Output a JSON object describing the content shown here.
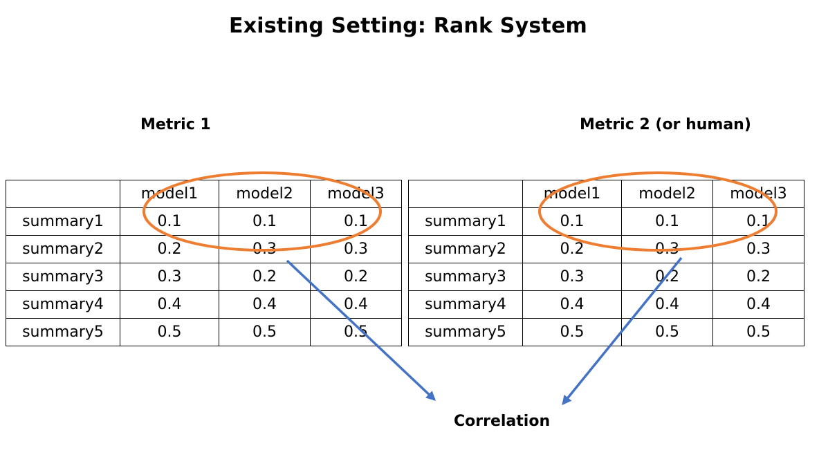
{
  "title": "Existing Setting: Rank System",
  "correlation_label": "Correlation",
  "colors": {
    "ellipse": "#ED7D31",
    "arrow": "#4472C4"
  },
  "tables": [
    {
      "label": "Metric 1",
      "headers": [
        "",
        "model1",
        "model2",
        "model3"
      ],
      "rows": [
        [
          "summary1",
          "0.1",
          "0.1",
          "0.1"
        ],
        [
          "summary2",
          "0.2",
          "0.3",
          "0.3"
        ],
        [
          "summary3",
          "0.3",
          "0.2",
          "0.2"
        ],
        [
          "summary4",
          "0.4",
          "0.4",
          "0.4"
        ],
        [
          "summary5",
          "0.5",
          "0.5",
          "0.5"
        ]
      ]
    },
    {
      "label": "Metric 2 (or human)",
      "headers": [
        "",
        "model1",
        "model2",
        "model3"
      ],
      "rows": [
        [
          "summary1",
          "0.1",
          "0.1",
          "0.1"
        ],
        [
          "summary2",
          "0.2",
          "0.3",
          "0.3"
        ],
        [
          "summary3",
          "0.3",
          "0.2",
          "0.2"
        ],
        [
          "summary4",
          "0.4",
          "0.4",
          "0.4"
        ],
        [
          "summary5",
          "0.5",
          "0.5",
          "0.5"
        ]
      ]
    }
  ]
}
